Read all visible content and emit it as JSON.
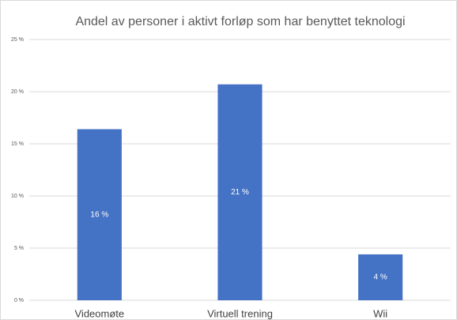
{
  "chart_data": {
    "type": "bar",
    "title": "Andel av personer i aktivt forløp som har benyttet teknologi",
    "categories": [
      "Videomøte",
      "Virtuell trening",
      "Wii"
    ],
    "values": [
      16.4,
      20.7,
      4.4
    ],
    "value_labels": [
      "16 %",
      "21 %",
      "4 %"
    ],
    "color": "#4472c4",
    "ylim": [
      0,
      25
    ],
    "yticks": [
      {
        "value": 0,
        "label": "0 %"
      },
      {
        "value": 5,
        "label": "5 %"
      },
      {
        "value": 10,
        "label": "10 %"
      },
      {
        "value": 15,
        "label": "15 %"
      },
      {
        "value": 20,
        "label": "20 %"
      },
      {
        "value": 25,
        "label": "25 %"
      }
    ],
    "grid": true
  }
}
